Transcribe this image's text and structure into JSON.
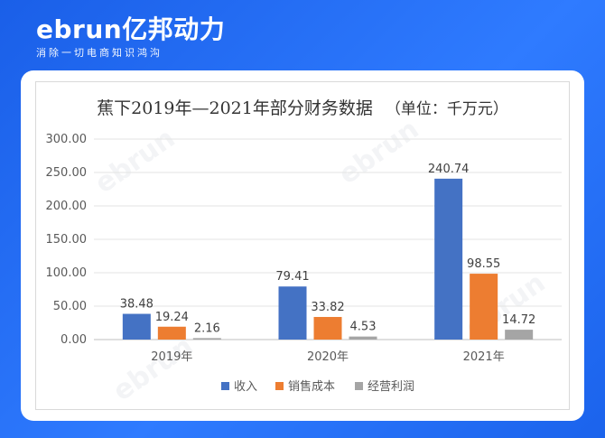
{
  "brand": {
    "name": "ebrun亿邦动力",
    "tagline": "消除一切电商知识鸿沟"
  },
  "chart_data": {
    "type": "bar",
    "title": "蕉下2019年—2021年部分财务数据",
    "unit_label": "（单位：千万元）",
    "categories": [
      "2019年",
      "2020年",
      "2021年"
    ],
    "series": [
      {
        "name": "收入",
        "color": "#4472c4",
        "values": [
          38.48,
          79.41,
          240.74
        ]
      },
      {
        "name": "销售成本",
        "color": "#ed7d31",
        "values": [
          19.24,
          33.82,
          98.55
        ]
      },
      {
        "name": "经营利润",
        "color": "#a5a5a5",
        "values": [
          2.16,
          4.53,
          14.72
        ]
      }
    ],
    "ylim": [
      0,
      300
    ],
    "yticks": [
      "0.00",
      "50.00",
      "100.00",
      "150.00",
      "200.00",
      "250.00",
      "300.00"
    ],
    "grid": true,
    "legend": "bottom"
  }
}
